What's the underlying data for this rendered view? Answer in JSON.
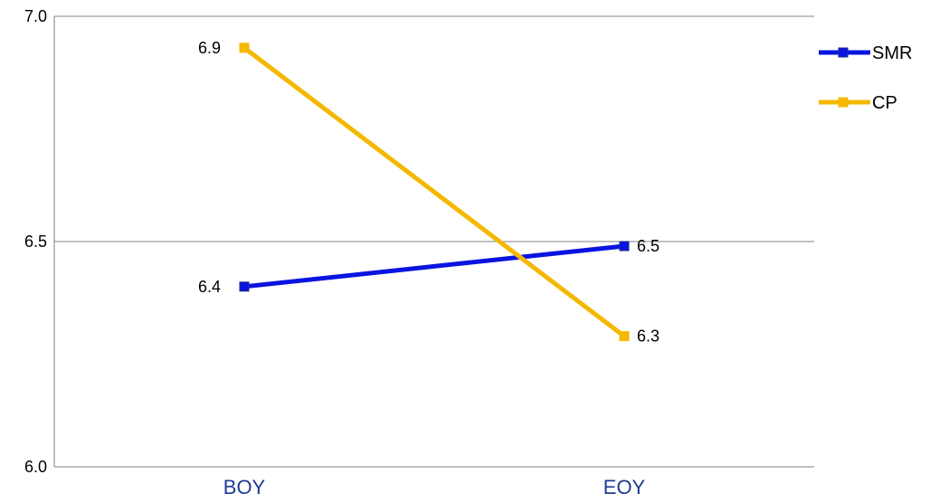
{
  "chart_data": {
    "type": "line",
    "categories": [
      "BOY",
      "EOY"
    ],
    "series": [
      {
        "name": "SMR",
        "values": [
          6.4,
          6.49
        ],
        "labels": [
          "6.4",
          "6.5"
        ],
        "color": "#0a14e0",
        "marker_color": "#0a14e0"
      },
      {
        "name": "CP",
        "values": [
          6.93,
          6.29
        ],
        "labels": [
          "6.9",
          "6.3"
        ],
        "color": "#f5b800",
        "marker_color": "#f5b800"
      }
    ],
    "ylim": [
      6.0,
      7.0
    ],
    "yticks": [
      6.0,
      6.5,
      7.0
    ],
    "ytick_labels": [
      "6.0",
      "6.5",
      "7.0"
    ],
    "gridlines": "horizontal",
    "legend_position": "right",
    "xlabel": "",
    "ylabel": ""
  }
}
